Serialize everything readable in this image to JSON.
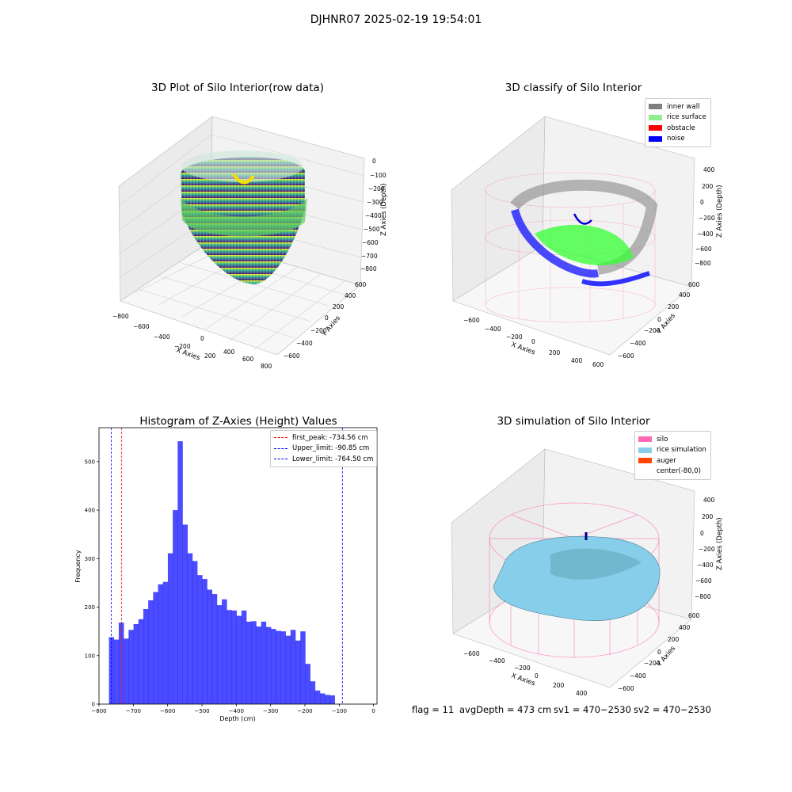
{
  "suptitle": "DJHNR07 2025-02-19 19:54:01",
  "panel1": {
    "title": "3D Plot of Silo Interior(row data)",
    "xlabel": "X Axies",
    "ylabel": "Y Axies",
    "zlabel": "Z Axies (Depth)",
    "xticks": [
      "−800",
      "−600",
      "−400",
      "−200",
      "0",
      "200",
      "400",
      "600",
      "800"
    ],
    "yticks": [
      "−600",
      "−400",
      "−200",
      "0",
      "200",
      "400",
      "600"
    ],
    "zticks": [
      "0",
      "−100",
      "−200",
      "−300",
      "−400",
      "−500",
      "−600",
      "−700",
      "−800"
    ]
  },
  "panel2": {
    "title": "3D classify of Silo Interior",
    "xlabel": "X Axies",
    "ylabel": "Y Axies",
    "zlabel": "Z Axies (Depth)",
    "xticks": [
      "−600",
      "−400",
      "−200",
      "0",
      "200",
      "400",
      "600"
    ],
    "yticks": [
      "−600",
      "−400",
      "−200",
      "0",
      "200",
      "400",
      "600"
    ],
    "zticks": [
      "400",
      "200",
      "0",
      "−200",
      "−400",
      "−600",
      "−800"
    ],
    "legend": [
      {
        "label": "inner wall",
        "color": "#808080"
      },
      {
        "label": "rice surface",
        "color": "#90ee90"
      },
      {
        "label": "obstacle",
        "color": "#ff0000"
      },
      {
        "label": "noise",
        "color": "#0000ff"
      }
    ]
  },
  "panel4": {
    "title": "3D simulation of Silo Interior",
    "xlabel": "X Axies",
    "ylabel": "Y Axies",
    "zlabel": "Z Axies (Depth)",
    "xticks": [
      "−600",
      "−400",
      "−200",
      "0",
      "200",
      "400"
    ],
    "yticks": [
      "−600",
      "−400",
      "−200",
      "0",
      "200",
      "400",
      "600"
    ],
    "zticks": [
      "400",
      "200",
      "0",
      "−200",
      "−400",
      "−600",
      "−800"
    ],
    "legend": [
      {
        "label": "silo",
        "color": "#ff69b4"
      },
      {
        "label": "rice simulation",
        "color": "#87ceeb"
      },
      {
        "label": "auger",
        "color": "#ff4500"
      },
      {
        "label": "center(-80,0)",
        "color": "#ffffff"
      }
    ]
  },
  "footer": {
    "flag": "flag = 11",
    "avg": "avgDepth = 473 cm",
    "sv1": "sv1 = 470~2530",
    "sv2": "sv2 = 470~2530"
  },
  "chart_data": [
    {
      "type": "bar",
      "title": "Histogram of Z-Axies (Height) Values",
      "xlabel": "Depth (cm)",
      "ylabel": "Frequency",
      "xlim": [
        -800,
        10
      ],
      "ylim": [
        0,
        570
      ],
      "xticks": [
        -800,
        -700,
        -600,
        -500,
        -400,
        -300,
        -200,
        -100,
        0
      ],
      "yticks": [
        0,
        100,
        200,
        300,
        400,
        500
      ],
      "bar_color": "#0000ff",
      "bin_start": -771,
      "bin_width": 14.3,
      "values": [
        138,
        133,
        168,
        135,
        153,
        165,
        175,
        196,
        214,
        231,
        247,
        252,
        311,
        400,
        542,
        370,
        311,
        295,
        266,
        258,
        236,
        227,
        204,
        216,
        194,
        193,
        182,
        193,
        170,
        171,
        160,
        170,
        159,
        155,
        151,
        150,
        141,
        153,
        131,
        150,
        83,
        47,
        28,
        22,
        19,
        18
      ],
      "vlines": [
        {
          "label": "first_peak: -734.56 cm",
          "x": -734.56,
          "color": "#ff0000"
        },
        {
          "label": "Upper_limit: -90.85 cm",
          "x": -90.85,
          "color": "#0000ff"
        },
        {
          "label": "Lower_limit: -764.50 cm",
          "x": -764.5,
          "color": "#0000ff"
        }
      ]
    }
  ]
}
